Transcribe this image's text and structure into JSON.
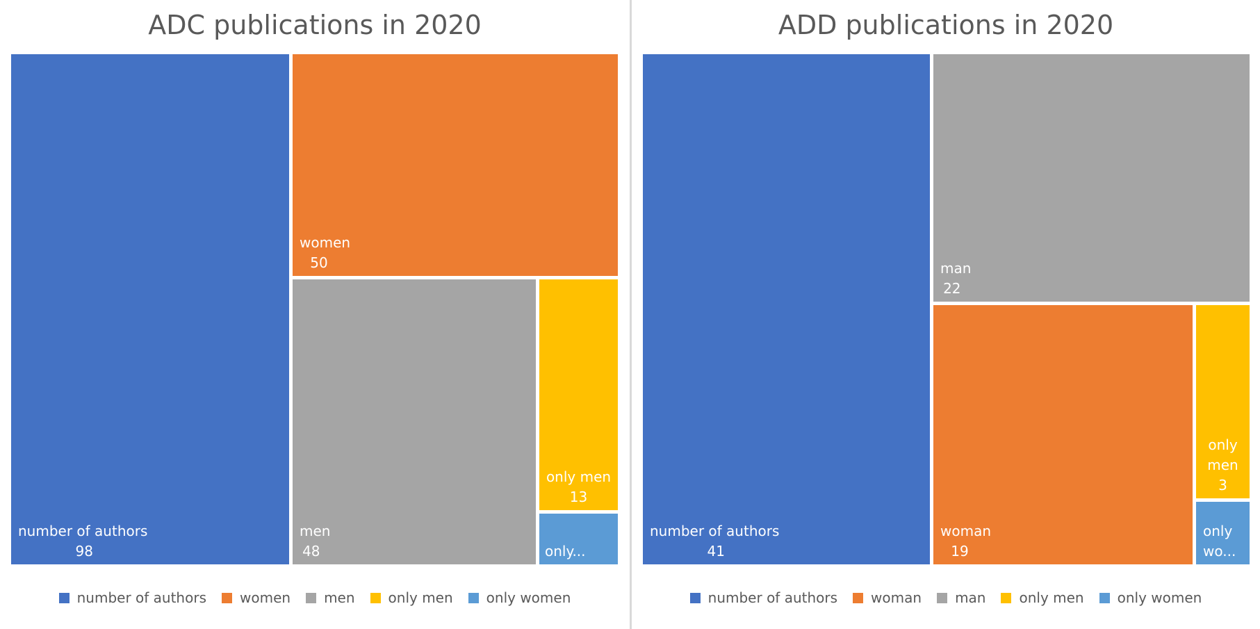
{
  "chart_data": [
    {
      "type": "treemap",
      "title": "ADC publications in 2020",
      "categories": [
        "number of authors",
        "women",
        "men",
        "only men",
        "only women"
      ],
      "values": [
        98,
        50,
        48,
        13,
        null
      ],
      "tiles": [
        {
          "name": "number of authors",
          "value": 98,
          "label_lines": [
            "number of authors",
            "98"
          ],
          "color": "#4472C4"
        },
        {
          "name": "women",
          "value": 50,
          "label_lines": [
            "women",
            "50"
          ],
          "color": "#ED7D31"
        },
        {
          "name": "men",
          "value": 48,
          "label_lines": [
            "men",
            "48"
          ],
          "color": "#A5A5A5"
        },
        {
          "name": "only men",
          "value": 13,
          "label_lines": [
            "only men",
            "13"
          ],
          "color": "#FFC000"
        },
        {
          "name": "only women",
          "value": null,
          "label_lines": [
            "only..."
          ],
          "color": "#5B9BD5"
        }
      ],
      "legend": {
        "placement": "bottom",
        "items": [
          {
            "label": "number of authors",
            "color": "#4472C4"
          },
          {
            "label": "women",
            "color": "#ED7D31"
          },
          {
            "label": "men",
            "color": "#A5A5A5"
          },
          {
            "label": "only men",
            "color": "#FFC000"
          },
          {
            "label": "only women",
            "color": "#5B9BD5"
          }
        ]
      }
    },
    {
      "type": "treemap",
      "title": "ADD publications in 2020",
      "categories": [
        "number of authors",
        "man",
        "woman",
        "only men",
        "only women"
      ],
      "values": [
        41,
        22,
        19,
        3,
        null
      ],
      "tiles": [
        {
          "name": "number of authors",
          "value": 41,
          "label_lines": [
            "number of authors",
            "41"
          ],
          "color": "#4472C4"
        },
        {
          "name": "man",
          "value": 22,
          "label_lines": [
            "man",
            "22"
          ],
          "color": "#A5A5A5"
        },
        {
          "name": "woman",
          "value": 19,
          "label_lines": [
            "woman",
            "19"
          ],
          "color": "#ED7D31"
        },
        {
          "name": "only men",
          "value": 3,
          "label_lines": [
            "only",
            "men",
            "3"
          ],
          "color": "#FFC000"
        },
        {
          "name": "only women",
          "value": null,
          "label_lines": [
            "only",
            "wo..."
          ],
          "color": "#5B9BD5"
        }
      ],
      "legend": {
        "placement": "bottom",
        "items": [
          {
            "label": "number of authors",
            "color": "#4472C4"
          },
          {
            "label": "woman",
            "color": "#ED7D31"
          },
          {
            "label": "man",
            "color": "#A5A5A5"
          },
          {
            "label": "only men",
            "color": "#FFC000"
          },
          {
            "label": "only women",
            "color": "#5B9BD5"
          }
        ]
      }
    }
  ]
}
